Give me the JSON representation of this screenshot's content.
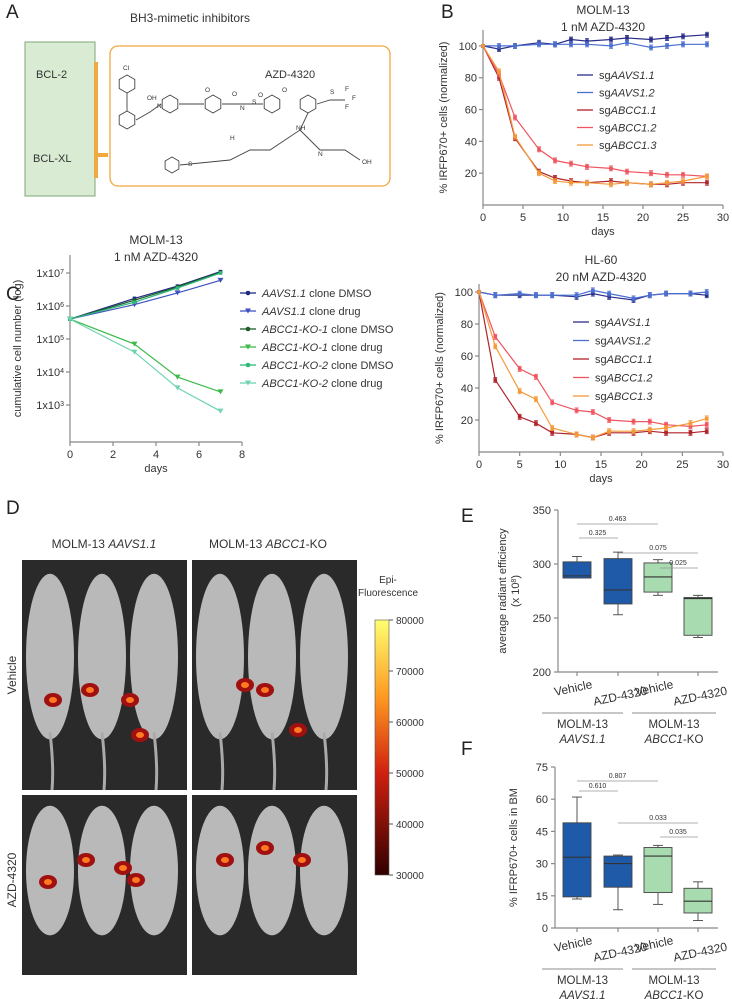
{
  "panel_letters": [
    "A",
    "B",
    "C",
    "D",
    "E",
    "F"
  ],
  "panelA": {
    "title": "BH3-mimetic inhibitors",
    "targets": [
      "BCL-2",
      "BCL-XL"
    ],
    "drug": "AZD-4320",
    "atom_labels": [
      "Cl",
      "OH",
      "N",
      "O",
      "N",
      "S",
      "O",
      "O",
      "S",
      "F",
      "F",
      "F",
      "NH",
      "N",
      "OH",
      "S",
      "H",
      "O"
    ],
    "colors": {
      "target_box": "#d9ebd3",
      "drug_box": "#f0a840"
    }
  },
  "chart_data": [
    {
      "id": "B_top",
      "type": "line",
      "title": [
        "MOLM-13",
        "1 nM AZD-4320"
      ],
      "xlabel": "days",
      "ylabel": "% IRFP670+ cells (normalized)",
      "xlim": [
        0,
        30
      ],
      "ylim": [
        0,
        110
      ],
      "xticks": [
        0,
        5,
        10,
        15,
        20,
        25,
        30
      ],
      "yticks": [
        20,
        40,
        60,
        80,
        100
      ],
      "legend": "center-right",
      "x": [
        0,
        2,
        4,
        7,
        9,
        11,
        13,
        16,
        18,
        21,
        23,
        25,
        28
      ],
      "series": [
        {
          "prefix": "sg",
          "name": "AAVS1.1",
          "color": "#2b2f8a",
          "values": [
            100,
            98,
            100,
            102,
            101,
            104,
            103,
            104,
            105,
            104,
            105,
            106,
            107
          ]
        },
        {
          "prefix": "sg",
          "name": "AAVS1.2",
          "color": "#4a6fd0",
          "values": [
            100,
            100,
            100,
            101,
            101,
            101,
            101,
            100,
            102,
            99,
            100,
            101,
            101
          ]
        },
        {
          "prefix": "sg",
          "name": "ABCC1.1",
          "color": "#b0242c",
          "values": [
            100,
            80,
            42,
            21,
            17,
            15,
            14,
            15,
            14,
            13,
            13,
            14,
            14
          ]
        },
        {
          "prefix": "sg",
          "name": "ABCC1.2",
          "color": "#f0545e",
          "values": [
            100,
            82,
            55,
            35,
            28,
            26,
            24,
            23,
            21,
            20,
            19,
            19,
            18
          ]
        },
        {
          "prefix": "sg",
          "name": "ABCC1.3",
          "color": "#f59a3a",
          "values": [
            100,
            84,
            43,
            20,
            15,
            14,
            14,
            13,
            14,
            13,
            14,
            15,
            18
          ]
        }
      ]
    },
    {
      "id": "B_bottom",
      "type": "line",
      "title": [
        "HL-60",
        "20 nM AZD-4320"
      ],
      "xlabel": "days",
      "ylabel": "% IRFP670+ cells (normalized)",
      "xlim": [
        0,
        30
      ],
      "ylim": [
        0,
        105
      ],
      "xticks": [
        0,
        5,
        10,
        15,
        20,
        25,
        30
      ],
      "yticks": [
        20,
        40,
        60,
        80,
        100
      ],
      "legend": "center-right",
      "x": [
        0,
        2,
        5,
        7,
        9,
        12,
        14,
        16,
        19,
        21,
        23,
        26,
        28
      ],
      "series": [
        {
          "prefix": "sg",
          "name": "AAVS1.1",
          "color": "#2b2f8a",
          "values": [
            100,
            98,
            98,
            98,
            98,
            97,
            99,
            97,
            95,
            98,
            99,
            99,
            98
          ]
        },
        {
          "prefix": "sg",
          "name": "AAVS1.2",
          "color": "#4a6fd0",
          "values": [
            100,
            98,
            99,
            98,
            98,
            98,
            101,
            99,
            96,
            98,
            99,
            99,
            100
          ]
        },
        {
          "prefix": "sg",
          "name": "ABCC1.1",
          "color": "#b0242c",
          "values": [
            100,
            45,
            22,
            18,
            12,
            11,
            9,
            12,
            12,
            13,
            12,
            12,
            13
          ]
        },
        {
          "prefix": "sg",
          "name": "ABCC1.2",
          "color": "#f0545e",
          "values": [
            100,
            72,
            52,
            47,
            31,
            26,
            25,
            20,
            19,
            19,
            17,
            16,
            17
          ]
        },
        {
          "prefix": "sg",
          "name": "ABCC1.3",
          "color": "#f59a3a",
          "values": [
            100,
            66,
            38,
            33,
            15,
            11,
            9,
            13,
            13,
            14,
            15,
            18,
            21
          ]
        }
      ]
    },
    {
      "id": "C",
      "type": "line",
      "title": [
        "MOLM-13",
        "1 nM AZD-4320"
      ],
      "xlabel": "days",
      "ylabel": "cumulative cell number (log)",
      "xlim": [
        0,
        8
      ],
      "ylim": [
        100,
        20000000
      ],
      "yscale": "log",
      "xticks": [
        0,
        2,
        4,
        6,
        8
      ],
      "yticks": [
        {
          "base": "1x10",
          "exp": "3",
          "value": 1000
        },
        {
          "base": "1x10",
          "exp": "4",
          "value": 10000
        },
        {
          "base": "1x10",
          "exp": "5",
          "value": 100000
        },
        {
          "base": "1x10",
          "exp": "6",
          "value": 1000000
        },
        {
          "base": "1x10",
          "exp": "7",
          "value": 10000000
        }
      ],
      "legend": "right",
      "x": [
        0,
        3,
        5,
        7
      ],
      "series": [
        {
          "name": "AAVS1.1",
          "suffix": " clone DMSO",
          "marker": "circle",
          "color": "#1f2a80",
          "values": [
            400000,
            1700000,
            4000000,
            11000000
          ]
        },
        {
          "name": "AAVS1.1",
          "suffix": " clone drug",
          "marker": "triangle",
          "color": "#3f51c0",
          "values": [
            400000,
            1100000,
            2500000,
            6000000
          ]
        },
        {
          "name": "ABCC1-KO-1",
          "suffix": " clone DMSO",
          "marker": "circle",
          "color": "#1e5e2a",
          "values": [
            400000,
            1500000,
            3800000,
            10500000
          ]
        },
        {
          "name": "ABCC1-KO-1",
          "suffix": " clone drug",
          "marker": "triangle",
          "color": "#3cba4a",
          "values": [
            400000,
            70000,
            7000,
            2500
          ]
        },
        {
          "name": "ABCC1-KO-2",
          "suffix": " clone DMSO",
          "marker": "circle",
          "color": "#2eb87a",
          "values": [
            400000,
            1300000,
            3500000,
            10000000
          ]
        },
        {
          "name": "ABCC1-KO-2",
          "suffix": " clone drug",
          "marker": "triangle",
          "color": "#6fd4b0",
          "values": [
            400000,
            40000,
            3300,
            650
          ]
        }
      ]
    },
    {
      "id": "E",
      "type": "box",
      "ylabel": "average radiant efficiency",
      "ylabel2": "(x 10",
      "ylabel2_exp": "8",
      "ylabel2_end": ")",
      "ylim": [
        200,
        350
      ],
      "yticks": [
        200,
        250,
        300,
        350
      ],
      "categories": [
        "Vehicle",
        "AZD-4320",
        "Vehicle",
        "AZD-4320"
      ],
      "groups": [
        {
          "line1": "MOLM-13",
          "line2": "AAVS1.1",
          "line2_suffix": ""
        },
        {
          "line1": "MOLM-13",
          "line2": "ABCC1",
          "line2_suffix": "-KO"
        }
      ],
      "colors": [
        "#1f5aa8",
        "#1f5aa8",
        "#a8dcb0",
        "#a8dcb0"
      ],
      "boxes": [
        {
          "min": 287,
          "q1": 287,
          "median": 289,
          "q3": 302,
          "max": 307
        },
        {
          "min": 253,
          "q1": 263,
          "median": 276,
          "q3": 305,
          "max": 311
        },
        {
          "min": 271,
          "q1": 274,
          "median": 288,
          "q3": 301,
          "max": 304
        },
        {
          "min": 232,
          "q1": 234,
          "median": 268,
          "q3": 269,
          "max": 271
        }
      ],
      "pvalues": [
        {
          "from": 0,
          "to": 2,
          "label": "0.463"
        },
        {
          "from": 0,
          "to": 1,
          "label": "0.325"
        },
        {
          "from": 1,
          "to": 3,
          "label": "0.075"
        },
        {
          "from": 2,
          "to": 3,
          "label": "0.025"
        }
      ]
    },
    {
      "id": "F",
      "type": "box",
      "ylabel": "% IFRP670+ cells in BM",
      "ylim": [
        0,
        75
      ],
      "yticks": [
        0,
        15,
        30,
        45,
        60,
        75
      ],
      "categories": [
        "Vehicle",
        "AZD-4320",
        "Vehicle",
        "AZD-4320"
      ],
      "groups": [
        {
          "line1": "MOLM-13",
          "line2": "AAVS1.1",
          "line2_suffix": ""
        },
        {
          "line1": "MOLM-13",
          "line2": "ABCC1",
          "line2_suffix": "-KO"
        }
      ],
      "colors": [
        "#1f5aa8",
        "#1f5aa8",
        "#a8dcb0",
        "#a8dcb0"
      ],
      "boxes": [
        {
          "min": 13.5,
          "q1": 14.5,
          "median": 33,
          "q3": 49,
          "max": 61
        },
        {
          "min": 8.5,
          "q1": 19,
          "median": 30,
          "q3": 33.5,
          "max": 34
        },
        {
          "min": 11,
          "q1": 16.5,
          "median": 33.5,
          "q3": 37.5,
          "max": 38.5
        },
        {
          "min": 3.5,
          "q1": 7,
          "median": 12.5,
          "q3": 18.5,
          "max": 21.5
        }
      ],
      "pvalues": [
        {
          "from": 0,
          "to": 2,
          "label": "0.807"
        },
        {
          "from": 0,
          "to": 1,
          "label": "0.610"
        },
        {
          "from": 1,
          "to": 3,
          "label": "0.033"
        },
        {
          "from": 2,
          "to": 3,
          "label": "0.035"
        }
      ]
    }
  ],
  "panelD": {
    "columns": [
      {
        "prefix": "MOLM-13 ",
        "gene": "AAVS1.1",
        "suffix": ""
      },
      {
        "prefix": "MOLM-13 ",
        "gene": "ABCC1",
        "suffix": "-KO"
      }
    ],
    "rows": [
      "Vehicle",
      "AZD-4320"
    ],
    "colorbar": {
      "title1": "Epi-",
      "title2": "Fluorescence",
      "ticks": [
        "80000",
        "70000",
        "60000",
        "50000",
        "40000",
        "30000"
      ]
    }
  }
}
